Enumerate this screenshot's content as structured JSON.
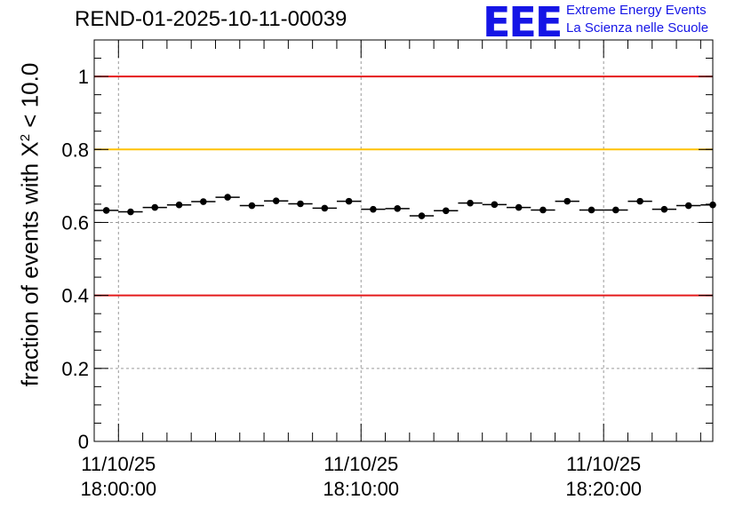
{
  "header": {
    "run_id": "REND-01-2025-10-11-00039",
    "logo_text": "EEE",
    "logo_line1": "Extreme Energy Events",
    "logo_line2": "La Scienza nelle Scuole"
  },
  "colors": {
    "red_line": "#e41a1c",
    "yellow_line": "#ffc200",
    "logo_blue": "#1515e6",
    "grid": "#9a9a9a"
  },
  "chart_data": {
    "type": "scatter",
    "title": "REND-01-2025-10-11-00039",
    "ylabel_prefix": "fraction of events with X",
    "ylabel_sup": "2",
    "ylabel_suffix": " < 10.0",
    "ylim": [
      0,
      1.1
    ],
    "yticks": [
      0,
      0.2,
      0.4,
      0.6,
      0.8,
      1
    ],
    "ytick_labels": [
      "0",
      "0.2",
      "0.4",
      "0.6",
      "0.8",
      "1"
    ],
    "x_unit": "minutes after 17:59:00",
    "xlim": [
      0,
      25.5
    ],
    "xticks": [
      {
        "x": 1,
        "date": "11/10/25",
        "time": "18:00:00"
      },
      {
        "x": 11,
        "date": "11/10/25",
        "time": "18:10:00"
      },
      {
        "x": 21,
        "date": "11/10/25",
        "time": "18:20:00"
      }
    ],
    "x_minor_step": 1,
    "grid": true,
    "reference_lines": [
      {
        "y": 1.0,
        "color": "#e41a1c"
      },
      {
        "y": 0.8,
        "color": "#ffc200"
      },
      {
        "y": 0.4,
        "color": "#e41a1c"
      }
    ],
    "bin_halfwidth": 0.5,
    "x": [
      0.5,
      1.5,
      2.5,
      3.5,
      4.5,
      5.5,
      6.5,
      7.5,
      8.5,
      9.5,
      10.5,
      11.5,
      12.5,
      13.5,
      14.5,
      15.5,
      16.5,
      17.5,
      18.5,
      19.5,
      20.5,
      21.5,
      22.5,
      23.5,
      24.5,
      25.5
    ],
    "y": [
      0.633,
      0.629,
      0.641,
      0.648,
      0.657,
      0.669,
      0.646,
      0.659,
      0.651,
      0.639,
      0.658,
      0.636,
      0.638,
      0.618,
      0.632,
      0.653,
      0.649,
      0.641,
      0.634,
      0.658,
      0.634,
      0.634,
      0.658,
      0.636,
      0.646,
      0.648
    ],
    "yerr": 0.006
  }
}
